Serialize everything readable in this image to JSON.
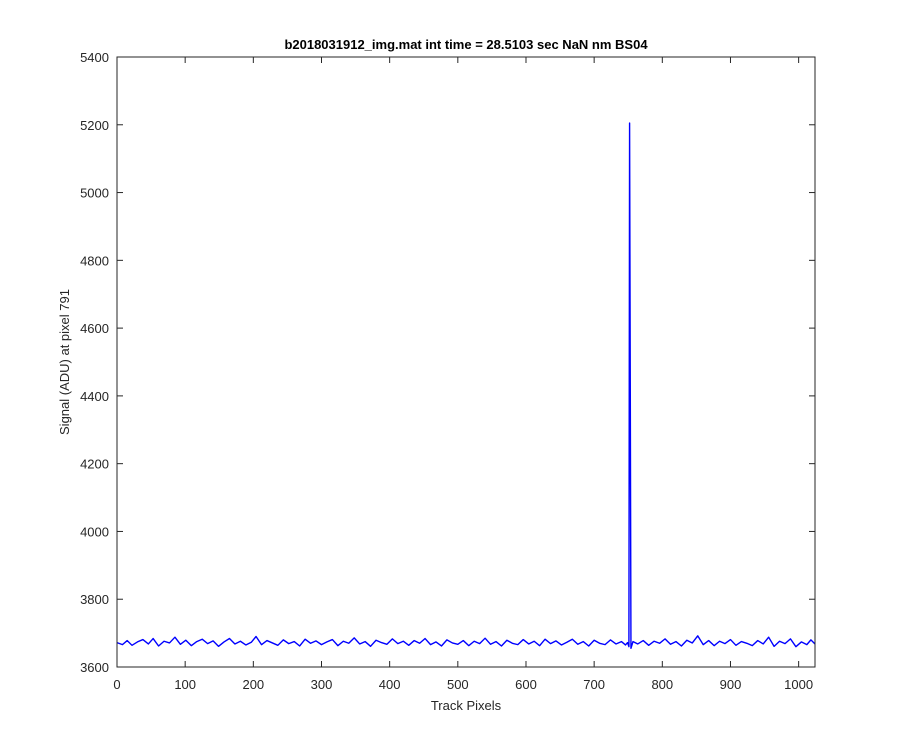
{
  "chart_data": {
    "type": "line",
    "title": "b2018031912_img.mat int time = 28.5103 sec  NaN nm BS04",
    "xlabel": "Track Pixels",
    "ylabel": "Signal (ADU) at pixel 791",
    "xlim": [
      0,
      1024
    ],
    "ylim": [
      3600,
      5400
    ],
    "xticks": [
      0,
      100,
      200,
      300,
      400,
      500,
      600,
      700,
      800,
      900,
      1000
    ],
    "yticks": [
      3600,
      3800,
      4000,
      4200,
      4400,
      4600,
      4800,
      5000,
      5200,
      5400
    ],
    "grid": false,
    "baseline_level": 3673,
    "series": [
      {
        "color": "#0000ff",
        "points": [
          [
            0,
            3672
          ],
          [
            8,
            3666
          ],
          [
            15,
            3678
          ],
          [
            22,
            3664
          ],
          [
            30,
            3674
          ],
          [
            38,
            3681
          ],
          [
            46,
            3668
          ],
          [
            53,
            3684
          ],
          [
            61,
            3662
          ],
          [
            69,
            3676
          ],
          [
            77,
            3671
          ],
          [
            85,
            3688
          ],
          [
            93,
            3667
          ],
          [
            101,
            3679
          ],
          [
            109,
            3663
          ],
          [
            117,
            3675
          ],
          [
            125,
            3682
          ],
          [
            133,
            3669
          ],
          [
            141,
            3677
          ],
          [
            149,
            3661
          ],
          [
            157,
            3674
          ],
          [
            165,
            3684
          ],
          [
            173,
            3668
          ],
          [
            181,
            3676
          ],
          [
            189,
            3665
          ],
          [
            197,
            3673
          ],
          [
            204,
            3690
          ],
          [
            212,
            3666
          ],
          [
            220,
            3678
          ],
          [
            228,
            3671
          ],
          [
            236,
            3664
          ],
          [
            244,
            3680
          ],
          [
            252,
            3669
          ],
          [
            260,
            3675
          ],
          [
            268,
            3662
          ],
          [
            276,
            3682
          ],
          [
            284,
            3670
          ],
          [
            292,
            3677
          ],
          [
            300,
            3666
          ],
          [
            308,
            3674
          ],
          [
            316,
            3681
          ],
          [
            324,
            3663
          ],
          [
            332,
            3676
          ],
          [
            340,
            3670
          ],
          [
            348,
            3686
          ],
          [
            356,
            3668
          ],
          [
            364,
            3675
          ],
          [
            372,
            3661
          ],
          [
            380,
            3679
          ],
          [
            388,
            3672
          ],
          [
            396,
            3667
          ],
          [
            404,
            3683
          ],
          [
            412,
            3669
          ],
          [
            420,
            3676
          ],
          [
            428,
            3664
          ],
          [
            436,
            3678
          ],
          [
            444,
            3670
          ],
          [
            452,
            3684
          ],
          [
            460,
            3666
          ],
          [
            468,
            3674
          ],
          [
            476,
            3662
          ],
          [
            484,
            3680
          ],
          [
            492,
            3671
          ],
          [
            500,
            3667
          ],
          [
            508,
            3678
          ],
          [
            516,
            3663
          ],
          [
            524,
            3676
          ],
          [
            532,
            3669
          ],
          [
            540,
            3685
          ],
          [
            548,
            3667
          ],
          [
            556,
            3675
          ],
          [
            564,
            3662
          ],
          [
            572,
            3679
          ],
          [
            580,
            3670
          ],
          [
            588,
            3666
          ],
          [
            596,
            3681
          ],
          [
            604,
            3668
          ],
          [
            612,
            3676
          ],
          [
            620,
            3663
          ],
          [
            628,
            3682
          ],
          [
            636,
            3669
          ],
          [
            644,
            3677
          ],
          [
            652,
            3665
          ],
          [
            660,
            3673
          ],
          [
            668,
            3682
          ],
          [
            676,
            3667
          ],
          [
            684,
            3675
          ],
          [
            692,
            3662
          ],
          [
            700,
            3679
          ],
          [
            708,
            3670
          ],
          [
            716,
            3666
          ],
          [
            724,
            3680
          ],
          [
            732,
            3668
          ],
          [
            740,
            3675
          ],
          [
            746,
            3665
          ],
          [
            749,
            3672
          ],
          [
            751,
            3660
          ],
          [
            752,
            5205
          ],
          [
            754,
            3655
          ],
          [
            757,
            3675
          ],
          [
            764,
            3668
          ],
          [
            772,
            3678
          ],
          [
            780,
            3664
          ],
          [
            788,
            3676
          ],
          [
            796,
            3670
          ],
          [
            804,
            3683
          ],
          [
            812,
            3667
          ],
          [
            820,
            3675
          ],
          [
            828,
            3662
          ],
          [
            836,
            3679
          ],
          [
            844,
            3671
          ],
          [
            852,
            3692
          ],
          [
            860,
            3666
          ],
          [
            868,
            3678
          ],
          [
            876,
            3663
          ],
          [
            884,
            3676
          ],
          [
            892,
            3669
          ],
          [
            900,
            3681
          ],
          [
            908,
            3664
          ],
          [
            916,
            3675
          ],
          [
            924,
            3670
          ],
          [
            932,
            3663
          ],
          [
            940,
            3678
          ],
          [
            948,
            3668
          ],
          [
            956,
            3688
          ],
          [
            964,
            3661
          ],
          [
            972,
            3676
          ],
          [
            980,
            3669
          ],
          [
            988,
            3683
          ],
          [
            996,
            3660
          ],
          [
            1004,
            3674
          ],
          [
            1012,
            3666
          ],
          [
            1018,
            3680
          ],
          [
            1024,
            3668
          ]
        ]
      }
    ]
  }
}
